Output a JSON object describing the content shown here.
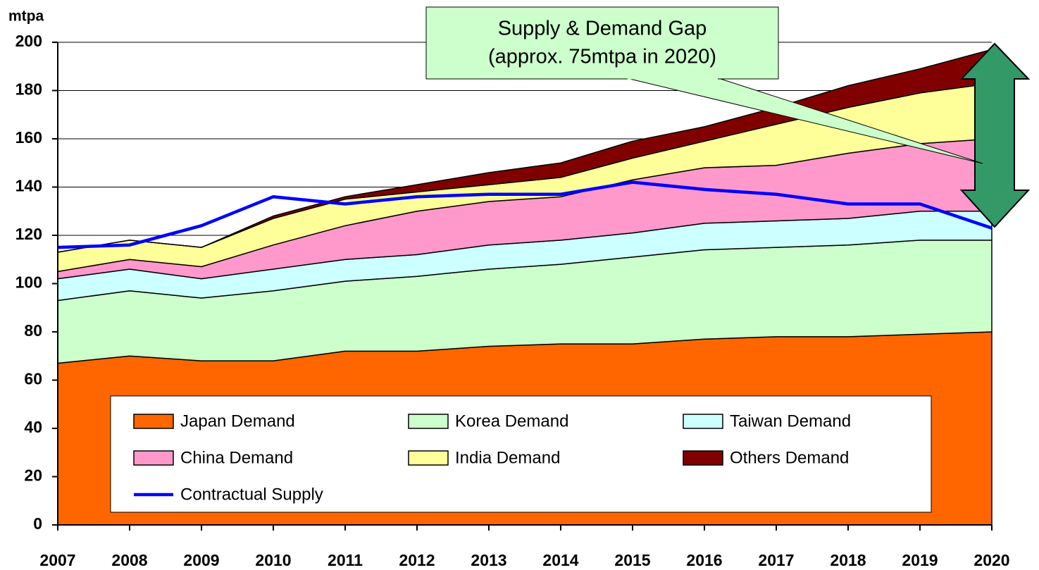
{
  "chart_data": {
    "type": "area",
    "stacked": true,
    "y_label": "mtpa",
    "annotation": [
      "Supply & Demand Gap",
      "(approx. 75mtpa in 2020)"
    ],
    "categories": [
      "2007",
      "2008",
      "2009",
      "2010",
      "2011",
      "2012",
      "2013",
      "2014",
      "2015",
      "2016",
      "2017",
      "2018",
      "2019",
      "2020"
    ],
    "series": [
      {
        "name": "Japan Demand",
        "color": "#ff6600",
        "values": [
          67,
          70,
          68,
          68,
          72,
          72,
          74,
          75,
          75,
          77,
          78,
          78,
          79,
          80
        ]
      },
      {
        "name": "Korea Demand",
        "color": "#ccffcc",
        "values": [
          26,
          27,
          26,
          29,
          29,
          31,
          32,
          33,
          36,
          37,
          37,
          38,
          39,
          38
        ]
      },
      {
        "name": "Taiwan Demand",
        "color": "#ccffff",
        "values": [
          9,
          9,
          8,
          9,
          9,
          9,
          10,
          10,
          10,
          11,
          11,
          11,
          12,
          12
        ]
      },
      {
        "name": "China Demand",
        "color": "#ff99cc",
        "values": [
          3,
          4,
          5,
          10,
          14,
          18,
          18,
          18,
          22,
          23,
          23,
          27,
          28,
          30
        ]
      },
      {
        "name": "India Demand",
        "color": "#ffff99",
        "values": [
          8,
          8,
          8,
          11,
          11,
          8,
          7,
          8,
          9,
          11,
          17,
          19,
          21,
          23
        ]
      },
      {
        "name": "Others Demand",
        "color": "#800000",
        "values": [
          0,
          0,
          0,
          1,
          1,
          3,
          5,
          6,
          7,
          6,
          7,
          9,
          10,
          14
        ]
      },
      {
        "name": "Contractual Supply",
        "color": "#0000ff",
        "type": "line",
        "values": [
          115,
          116,
          124,
          136,
          133,
          136,
          137,
          137,
          142,
          139,
          137,
          133,
          133,
          123
        ]
      }
    ],
    "ylim": [
      0,
      200
    ],
    "yticks": [
      0,
      20,
      40,
      60,
      80,
      100,
      120,
      140,
      160,
      180,
      200
    ],
    "grid": true
  }
}
